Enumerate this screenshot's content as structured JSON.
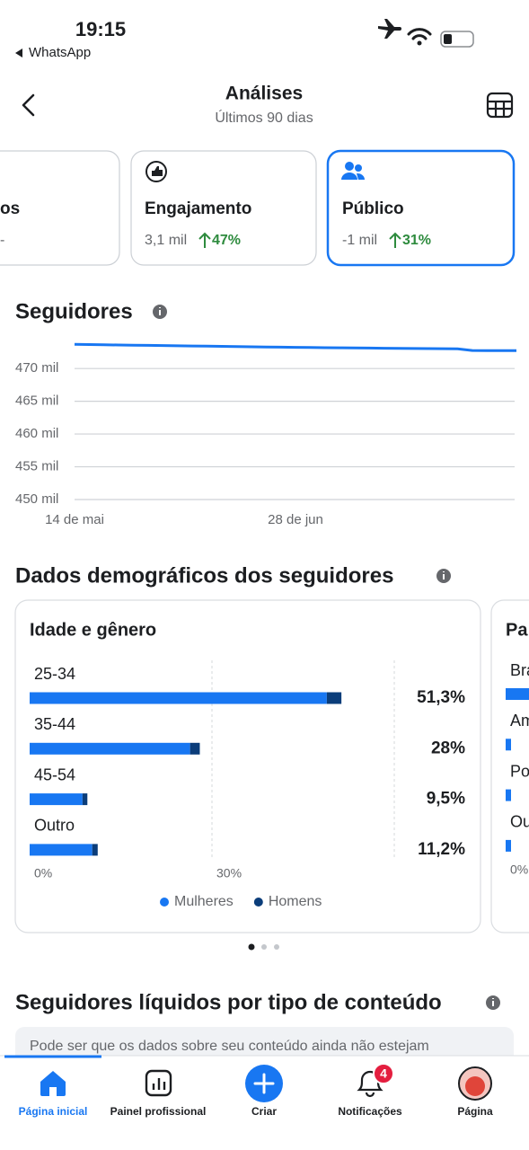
{
  "status_bar": {
    "time": "19:15",
    "back_app": "WhatsApp"
  },
  "header": {
    "title": "Análises",
    "subtitle": "Últimos 90 dias"
  },
  "cards": [
    {
      "title": "os",
      "stat": "-"
    },
    {
      "title": "Engajamento",
      "stat": "3,1 mil",
      "change": "47%"
    },
    {
      "title": "Público",
      "stat": "-1 mil",
      "change": "31%"
    }
  ],
  "followers": {
    "title": "Seguidores",
    "chart_data": {
      "type": "line",
      "categories": [
        "14 de mai",
        null,
        null,
        null,
        null,
        null,
        null,
        null,
        null,
        null,
        null,
        null,
        null,
        null,
        null,
        "28 de jun",
        null,
        null,
        null,
        null,
        null,
        null,
        null,
        null,
        null,
        null,
        null,
        null,
        null,
        null,
        null
      ],
      "values": [
        473700,
        473660,
        473620,
        473590,
        473560,
        473530,
        473500,
        473470,
        473440,
        473410,
        473380,
        473350,
        473320,
        473290,
        473260,
        473230,
        473200,
        473180,
        473160,
        473140,
        473120,
        473100,
        473080,
        473060,
        473040,
        473020,
        473000,
        472750,
        472740,
        472730,
        472720
      ],
      "color": "#1877f2",
      "ylim": [
        450000,
        474000
      ],
      "yticks": [
        {
          "value": 450000,
          "label": "450 mil"
        },
        {
          "value": 455000,
          "label": "455 mil"
        },
        {
          "value": 460000,
          "label": "460 mil"
        },
        {
          "value": 465000,
          "label": "465 mil"
        },
        {
          "value": 470000,
          "label": "470 mil"
        }
      ],
      "grid": true
    }
  },
  "demographics": {
    "title": "Dados demográficos dos seguidores",
    "chart_data": {
      "type": "stacked-bar-horizontal",
      "title": "Idade e gênero",
      "categories": [
        "25-34",
        "35-44",
        "45-54",
        "Outro"
      ],
      "series": [
        {
          "name": "Mulheres",
          "color": "#1877f2",
          "values": [
            48.9,
            26.4,
            8.7,
            10.3
          ]
        },
        {
          "name": "Homens",
          "color": "#0b3d7a",
          "values": [
            2.4,
            1.6,
            0.8,
            0.9
          ]
        }
      ],
      "value_labels": [
        "51,3%",
        "28%",
        "9,5%",
        "11,2%"
      ],
      "xlim": [
        0,
        60
      ],
      "xticks": [
        {
          "value": 0,
          "label": "0%"
        },
        {
          "value": 30,
          "label": "30%"
        }
      ],
      "grid": true
    },
    "next_card": {
      "title": "Pa",
      "items": [
        "Bra",
        "Am",
        "Po",
        "Ou"
      ],
      "tick": "0%"
    }
  },
  "content": {
    "title": "Seguidores líquidos por tipo de conteúdo",
    "note": "Pode ser que os dados sobre seu conteúdo ainda não estejam"
  },
  "nav": {
    "items": [
      "Página inicial",
      "Painel profissional",
      "Criar",
      "Notificações",
      "Página"
    ],
    "badge": "4"
  }
}
